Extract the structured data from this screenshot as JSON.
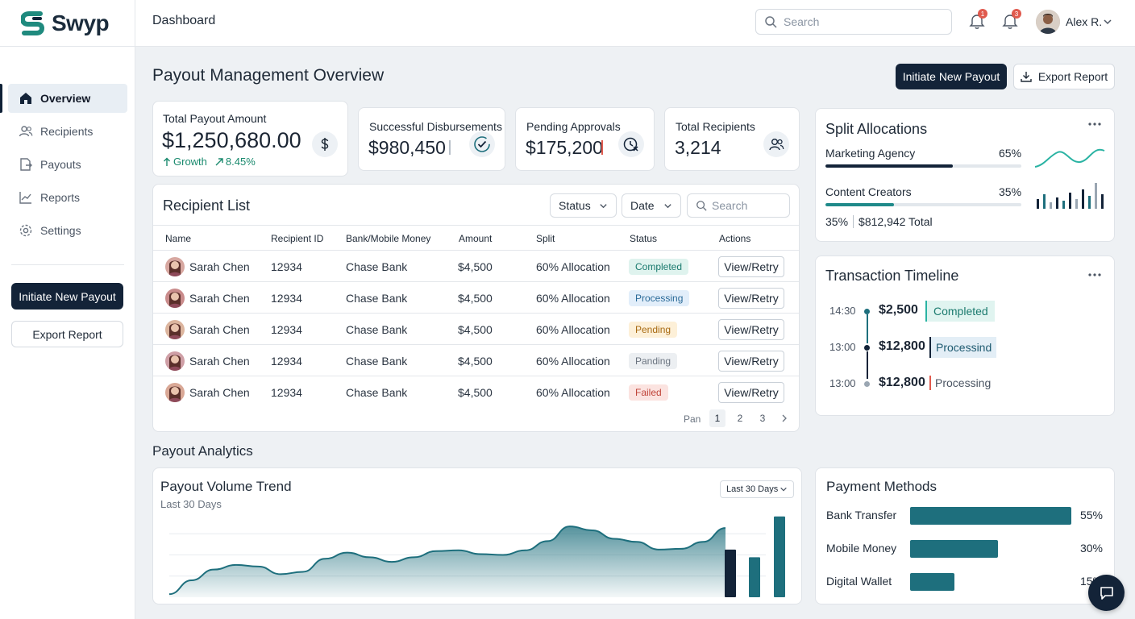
{
  "brand": {
    "name": "Swyp",
    "logo_icon": "swyp-s-logo"
  },
  "sidebar": {
    "items": [
      {
        "label": "Overview",
        "icon": "home-icon",
        "active": true
      },
      {
        "label": "Recipients",
        "icon": "users-icon"
      },
      {
        "label": "Payouts",
        "icon": "payout-icon"
      },
      {
        "label": "Reports",
        "icon": "chart-line-icon"
      },
      {
        "label": "Settings",
        "icon": "gear-icon"
      }
    ],
    "primary_button": "Initiate New Payout",
    "secondary_button": "Export Report"
  },
  "topbar": {
    "breadcrumb": "Dashboard",
    "search_placeholder": "Search",
    "notifications": [
      {
        "icon": "bell-icon",
        "count": "1"
      },
      {
        "icon": "bell-icon",
        "count": "3"
      }
    ],
    "user_name": "Alex R."
  },
  "page": {
    "title": "Payout Management Overview",
    "primary_button": "Initiate New Payout",
    "export_button": "Export Report"
  },
  "stats": {
    "total_payout": {
      "label": "Total Payout Amount",
      "value": "$1,250,680.00",
      "growth_label": "Growth",
      "growth_value": "8.45%"
    },
    "successful": {
      "label": "Successful Disbursements",
      "value": "$980,450"
    },
    "pending": {
      "label": "Pending Approvals",
      "value": "$175,200"
    },
    "recipients": {
      "label": "Total Recipients",
      "value": "3,214"
    }
  },
  "recipient_list": {
    "title": "Recipient List",
    "filters": {
      "status": "Status",
      "date": "Date",
      "search_placeholder": "Search"
    },
    "columns": [
      "Name",
      "Recipient ID",
      "Bank/Mobile Money",
      "Amount",
      "Split",
      "Status",
      "Actions"
    ],
    "rows": [
      {
        "name": "Sarah Chen",
        "id": "12934",
        "bank": "Chase Bank",
        "amount": "$4,500",
        "split": "60% Allocation",
        "status": "Completed",
        "action": "View/Retry"
      },
      {
        "name": "Sarah Chen",
        "id": "12934",
        "bank": "Chase Bank",
        "amount": "$4,500",
        "split": "60% Allocation",
        "status": "Processing",
        "action": "View/Retry"
      },
      {
        "name": "Sarah Chen",
        "id": "12934",
        "bank": "Chase Bank",
        "amount": "$4,500",
        "split": "60% Allocation",
        "status": "Pending",
        "action": "View/Retry"
      },
      {
        "name": "Sarah Chen",
        "id": "12934",
        "bank": "Chase Bank",
        "amount": "$4,500",
        "split": "60% Allocation",
        "status": "Panding",
        "action": "View/Retry"
      },
      {
        "name": "Sarah Chen",
        "id": "12934",
        "bank": "Chase Bank",
        "amount": "$4,500",
        "split": "60% Allocation",
        "status": "Failed",
        "action": "View/Retry"
      }
    ],
    "pagination": {
      "label": "Pan",
      "pages": [
        "1",
        "2",
        "3"
      ],
      "current": "1"
    }
  },
  "split_allocations": {
    "title": "Split Allocations",
    "items": [
      {
        "label": "Marketing Agency",
        "percent": "65%",
        "fraction": 0.65,
        "color": "#132338"
      },
      {
        "label": "Content Creators",
        "percent": "35%",
        "fraction": 0.35,
        "color": "#1f8a8a"
      }
    ],
    "summary_percent": "35%",
    "summary_total": "$812,942 Total"
  },
  "timeline": {
    "title": "Transaction Timeline",
    "events": [
      {
        "time": "14:30",
        "amount": "$2,500",
        "status": "Completed"
      },
      {
        "time": "13:00",
        "amount": "$12,800",
        "status": "Processind"
      },
      {
        "time": "13:00",
        "amount": "$12,800",
        "status": "Processing"
      }
    ]
  },
  "analytics": {
    "section_title": "Payout Analytics",
    "trend_title": "Payout Volume Trend",
    "trend_subtitle": "Last 30 Days",
    "range_select": "Last 30 Days"
  },
  "chart_data": {
    "type": "area",
    "title": "Payout Volume Trend",
    "subtitle": "Last 30 Days",
    "x": [
      0,
      1,
      2,
      3,
      4,
      5,
      6,
      7,
      8,
      9,
      10,
      11,
      12,
      13,
      14,
      15,
      16,
      17,
      18,
      19,
      20,
      21,
      22,
      23,
      24,
      25
    ],
    "values": [
      4,
      22,
      36,
      42,
      40,
      30,
      33,
      50,
      58,
      52,
      46,
      52,
      60,
      61,
      56,
      55,
      61,
      73,
      92,
      87,
      76,
      72,
      62,
      63,
      72,
      90
    ],
    "bars": [
      {
        "value": 62
      },
      {
        "value": 52
      },
      {
        "value": 105
      }
    ],
    "ylim": [
      0,
      110
    ],
    "grid": true
  },
  "payment_methods": {
    "title": "Payment Methods",
    "items": [
      {
        "label": "Bank Transfer",
        "percent": "55%",
        "fraction": 0.55
      },
      {
        "label": "Mobile Money",
        "percent": "30%",
        "fraction": 0.3
      },
      {
        "label": "Digital Wallet",
        "percent": "15%",
        "fraction": 0.15
      }
    ],
    "color": "#1e6f7d"
  },
  "colors": {
    "accent": "#132338",
    "teal": "#1e6f7d",
    "positive": "#1a8a6e"
  }
}
